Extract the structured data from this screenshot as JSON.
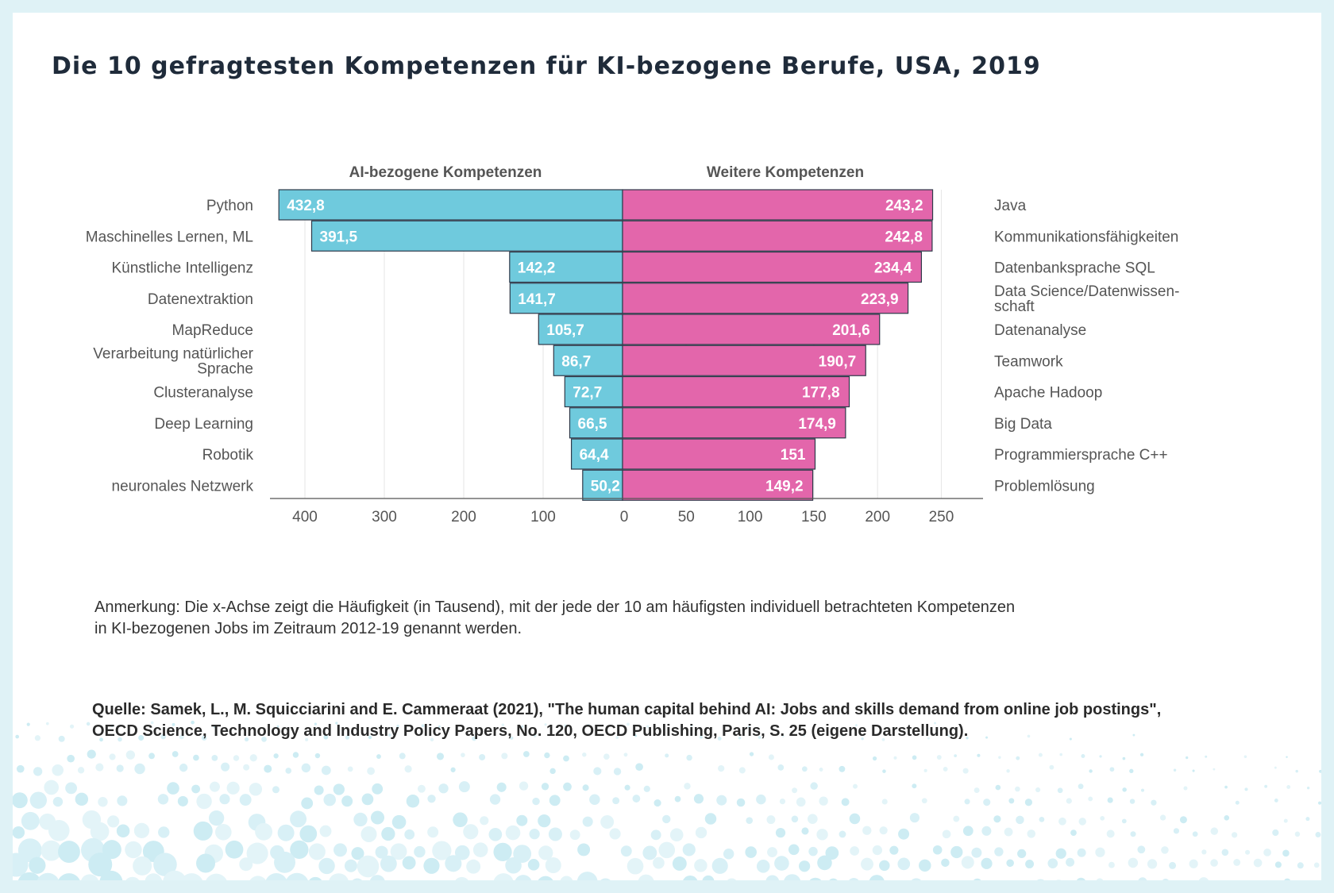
{
  "title": "Die 10 gefragtesten Kompetenzen für KI-bezogene Berufe, USA, 2019",
  "colors": {
    "left": "#6fcadd",
    "right": "#e366ab",
    "grid": "#e6e6e6",
    "outline": "#2f3a4a",
    "background": "#dff2f6"
  },
  "chart_data": {
    "type": "bar",
    "orientation": "horizontal-butterfly",
    "left": {
      "header": "AI-bezogene Kompetenzen",
      "categories": [
        "Python",
        "Maschinelles Lernen, ML",
        "Künstliche Intelligenz",
        "Datenextraktion",
        "MapReduce",
        "Verarbeitung natürlicher|Sprache",
        "Clusteranalyse",
        "Deep Learning",
        "Robotik",
        "neuronales Netzwerk"
      ],
      "values": [
        432.8,
        391.5,
        142.2,
        141.7,
        105.7,
        86.7,
        72.7,
        66.5,
        64.4,
        50.2
      ],
      "labels": [
        "432,8",
        "391,5",
        "142,2",
        "141,7",
        "105,7",
        "86,7",
        "72,7",
        "66,5",
        "64,4",
        "50,2"
      ],
      "xlim": [
        0,
        440
      ],
      "ticks": [
        400,
        300,
        200,
        100,
        0
      ],
      "tick_labels": [
        "400",
        "300",
        "200",
        "100",
        "0"
      ]
    },
    "right": {
      "header": "Weitere Kompetenzen",
      "categories": [
        "Java",
        "Kommunikationsfähigkeiten",
        "Datenbanksprache SQL",
        "Data Science/Datenwissen-|schaft",
        "Datenanalyse",
        "Teamwork",
        "Apache Hadoop",
        "Big Data",
        "Programmiersprache C++",
        "Problemlösung"
      ],
      "values": [
        243.2,
        242.8,
        234.4,
        223.9,
        201.6,
        190.7,
        177.8,
        174.9,
        151,
        149.2
      ],
      "labels": [
        "243,2",
        "242,8",
        "234,4",
        "223,9",
        "201,6",
        "190,7",
        "177,8",
        "174,9",
        "151",
        "149,2"
      ],
      "xlim": [
        0,
        274
      ],
      "ticks": [
        0,
        50,
        100,
        150,
        200,
        250
      ],
      "tick_labels": [
        "0",
        "50",
        "100",
        "150",
        "200",
        "250"
      ]
    },
    "xlabel": "",
    "grid": true
  },
  "note": {
    "line1": "Anmerkung: Die x-Achse zeigt die Häufigkeit (in Tausend), mit der jede der 10 am häufigsten individuell betrachteten Kompetenzen",
    "line2": "in KI-bezogenen Jobs im Zeitraum 2012-19 genannt werden."
  },
  "source": {
    "line1": "Quelle: Samek, L., M. Squicciarini and E. Cammeraat (2021), \"The human capital behind AI: Jobs and skills demand from online job postings\",",
    "line2": "OECD Science, Technology and Industry Policy Papers, No. 120, OECD Publishing, Paris, S. 25 (eigene Darstellung)."
  }
}
